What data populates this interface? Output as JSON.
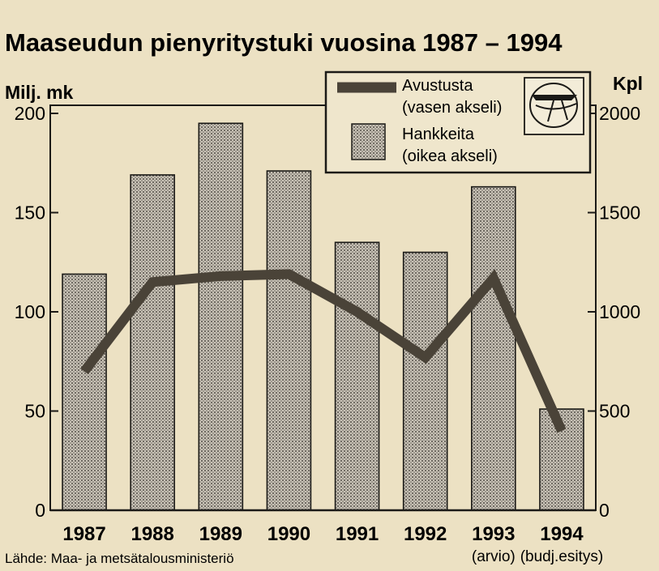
{
  "chart_data": {
    "type": "bar",
    "title": "Maaseudun pienyritystuki vuosina 1987 – 1994",
    "source": "Lähde: Maa- ja metsätalousministeriö",
    "categories": [
      "1987",
      "1988",
      "1989",
      "1990",
      "1991",
      "1992",
      "1993",
      "1994"
    ],
    "category_notes": [
      "",
      "",
      "",
      "",
      "",
      "",
      "(arvio)",
      "(budj.esitys)"
    ],
    "left_axis": {
      "label": "Milj. mk",
      "ylim": [
        0,
        200
      ],
      "ticks": [
        "0",
        "50",
        "100",
        "150",
        "200"
      ]
    },
    "right_axis": {
      "label": "Kpl",
      "ylim": [
        0,
        2000
      ],
      "ticks": [
        "0",
        "500",
        "1000",
        "1500",
        "2000"
      ]
    },
    "series": [
      {
        "name": "Avustusta",
        "axis_note": "(vasen akseli)",
        "type": "line",
        "axis": "left",
        "values": [
          70,
          115,
          118,
          119,
          100,
          77,
          117,
          40
        ]
      },
      {
        "name": "Hankkeita",
        "axis_note": "(oikea akseli)",
        "type": "bar",
        "axis": "right",
        "values": [
          1190,
          1690,
          1950,
          1710,
          1350,
          1300,
          1630,
          510
        ]
      }
    ],
    "legend_position": "top-right",
    "grid": false,
    "colors": {
      "line": "#4a4338",
      "bar": "#aaa49a",
      "background": "#ece1c3"
    }
  }
}
